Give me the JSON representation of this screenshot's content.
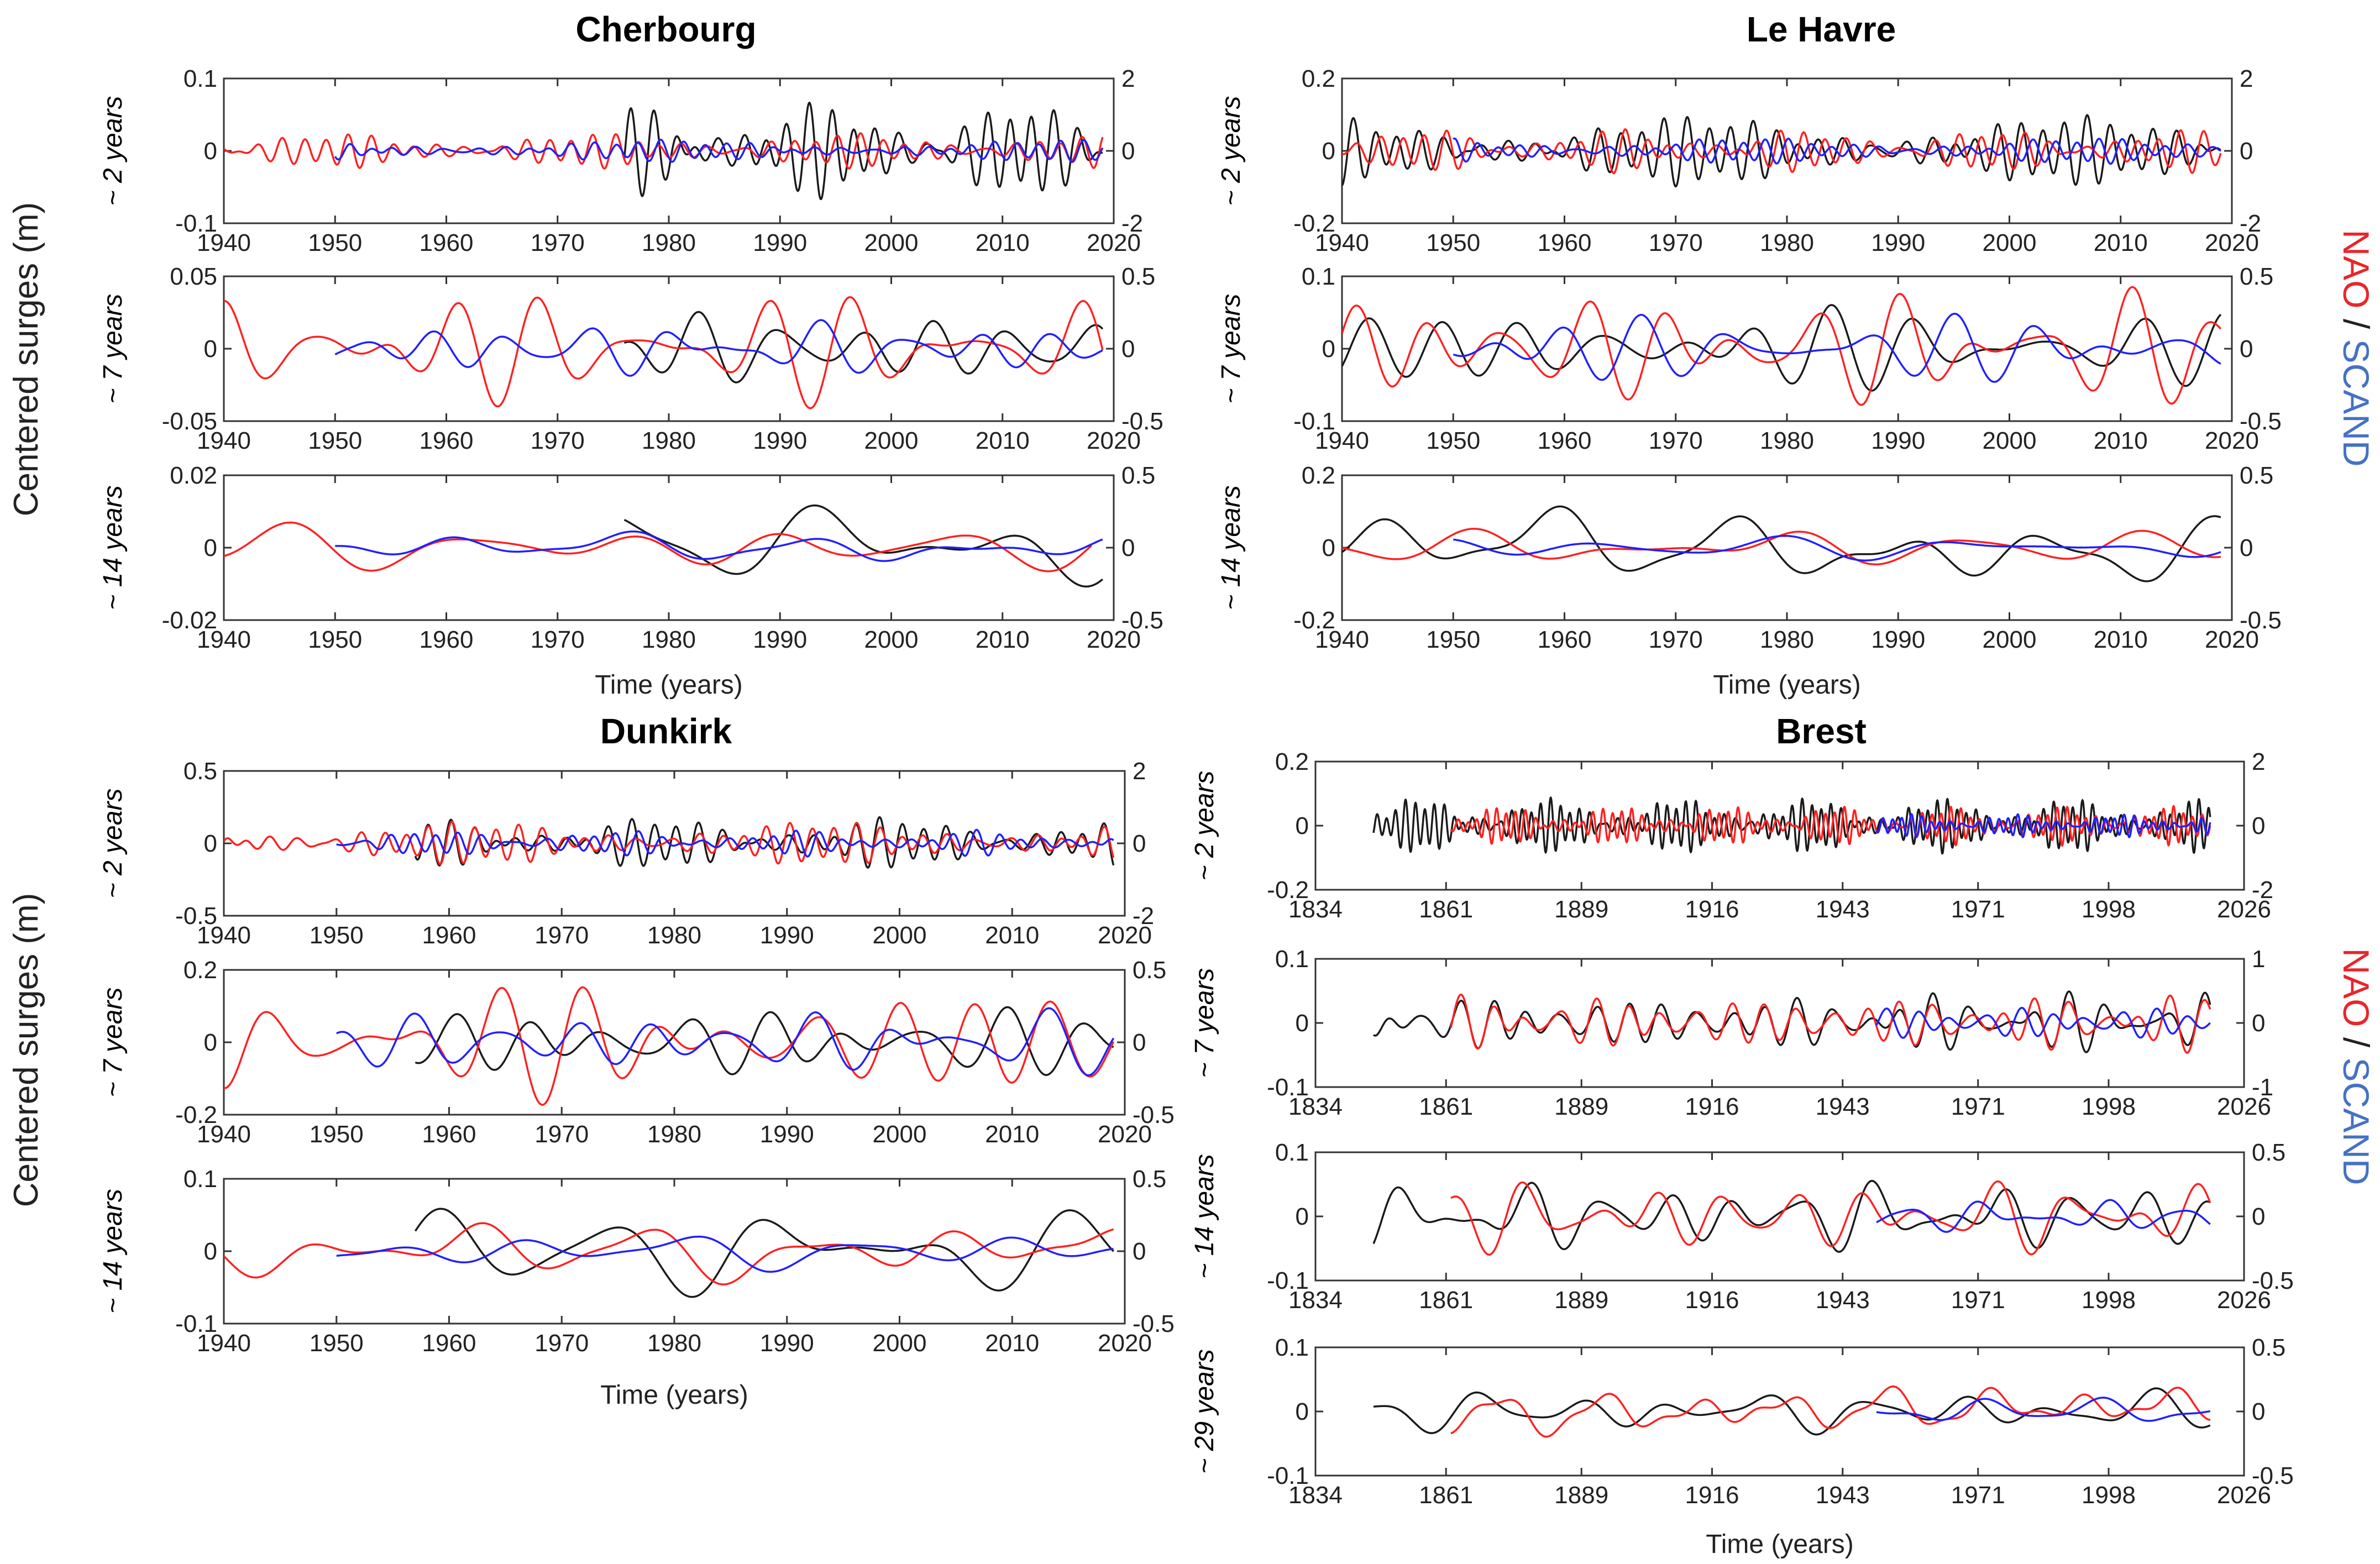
{
  "figure": {
    "shared_ylabel": "Centered surges (m)",
    "shared_xlabel": "Time (years)",
    "legend": {
      "nao": "NAO",
      "separator": "/",
      "scand": "SCAND"
    },
    "colors": {
      "surge": "#1a1a1a",
      "nao": "#ff2020",
      "scand": "#2020ff",
      "legend_nao": "#e8262b",
      "legend_scand": "#4472c4"
    }
  },
  "chart_data": [
    {
      "type": "line",
      "title": "Cherbourg",
      "xlabel": "Time (years)",
      "panels": [
        {
          "ylabel": "~ 2 years",
          "xlim": [
            1940,
            2020
          ],
          "xticks": [
            "1940",
            "1950",
            "1960",
            "1970",
            "1980",
            "1990",
            "2000",
            "2010",
            "2020"
          ],
          "ylim": [
            -0.1,
            0.1
          ],
          "yticks": [
            "-0.1",
            "0",
            "0.1"
          ],
          "y2lim": [
            -2,
            2
          ],
          "y2ticks": [
            "-2",
            "0",
            "2"
          ],
          "series": [
            {
              "name": "Surge",
              "start": 1976,
              "end": 2019,
              "period": 2,
              "amplitude": 0.055
            },
            {
              "name": "NAO",
              "start": 1940,
              "end": 2019,
              "period": 2,
              "amplitude": 0.4
            },
            {
              "name": "SCAND",
              "start": 1950,
              "end": 2019,
              "period": 2,
              "amplitude": 0.25
            }
          ]
        },
        {
          "ylabel": "~ 7 years",
          "xlim": [
            1940,
            2020
          ],
          "xticks": [
            "1940",
            "1950",
            "1960",
            "1970",
            "1980",
            "1990",
            "2000",
            "2010",
            "2020"
          ],
          "ylim": [
            -0.05,
            0.05
          ],
          "yticks": [
            "-0.05",
            "0",
            "0.05"
          ],
          "y2lim": [
            -0.5,
            0.5
          ],
          "y2ticks": [
            "-0.5",
            "0",
            "0.5"
          ],
          "series": [
            {
              "name": "Surge",
              "start": 1976,
              "end": 2019,
              "period": 7,
              "amplitude": 0.025
            },
            {
              "name": "NAO",
              "start": 1940,
              "end": 2019,
              "period": 7,
              "amplitude": 0.33
            },
            {
              "name": "SCAND",
              "start": 1950,
              "end": 2019,
              "period": 7,
              "amplitude": 0.17
            }
          ]
        },
        {
          "ylabel": "~ 14 years",
          "xlim": [
            1940,
            2020
          ],
          "xticks": [
            "1940",
            "1950",
            "1960",
            "1970",
            "1980",
            "1990",
            "2000",
            "2010",
            "2020"
          ],
          "ylim": [
            -0.02,
            0.02
          ],
          "yticks": [
            "-0.02",
            "0",
            "0.02"
          ],
          "y2lim": [
            -0.5,
            0.5
          ],
          "y2ticks": [
            "-0.5",
            "0",
            "0.5"
          ],
          "series": [
            {
              "name": "Surge",
              "start": 1976,
              "end": 2019,
              "period": 17,
              "amplitude": 0.012
            },
            {
              "name": "NAO",
              "start": 1940,
              "end": 2018,
              "period": 15,
              "amplitude": 0.15
            },
            {
              "name": "SCAND",
              "start": 1950,
              "end": 2019,
              "period": 15,
              "amplitude": 0.1
            }
          ]
        }
      ]
    },
    {
      "type": "line",
      "title": "Le Havre",
      "xlabel": "Time (years)",
      "panels": [
        {
          "ylabel": "~ 2 years",
          "xlim": [
            1940,
            2020
          ],
          "xticks": [
            "1940",
            "1950",
            "1960",
            "1970",
            "1980",
            "1990",
            "2000",
            "2010",
            "2020"
          ],
          "ylim": [
            -0.2,
            0.2
          ],
          "yticks": [
            "-0.2",
            "0",
            "0.2"
          ],
          "y2lim": [
            -2,
            2
          ],
          "y2ticks": [
            "-2",
            "0",
            "2"
          ],
          "series": [
            {
              "name": "Surge",
              "start": 1940,
              "end": 2019,
              "period": 2,
              "amplitude": 0.08
            },
            {
              "name": "NAO",
              "start": 1940,
              "end": 2019,
              "period": 2,
              "amplitude": 0.5
            },
            {
              "name": "SCAND",
              "start": 1950,
              "end": 2019,
              "period": 2,
              "amplitude": 0.3
            }
          ]
        },
        {
          "ylabel": "~ 7 years",
          "xlim": [
            1940,
            2020
          ],
          "xticks": [
            "1940",
            "1950",
            "1960",
            "1970",
            "1980",
            "1990",
            "2000",
            "2010",
            "2020"
          ],
          "ylim": [
            -0.1,
            0.1
          ],
          "yticks": [
            "-0.1",
            "0",
            "0.1"
          ],
          "y2lim": [
            -0.5,
            0.5
          ],
          "y2ticks": [
            "-0.5",
            "0",
            "0.5"
          ],
          "series": [
            {
              "name": "Surge",
              "start": 1940,
              "end": 2019,
              "period": 7,
              "amplitude": 0.05
            },
            {
              "name": "NAO",
              "start": 1940,
              "end": 2019,
              "period": 7,
              "amplitude": 0.35
            },
            {
              "name": "SCAND",
              "start": 1950,
              "end": 2019,
              "period": 7,
              "amplitude": 0.2
            }
          ]
        },
        {
          "ylabel": "~ 14 years",
          "xlim": [
            1940,
            2020
          ],
          "xticks": [
            "1940",
            "1950",
            "1960",
            "1970",
            "1980",
            "1990",
            "2000",
            "2010",
            "2020"
          ],
          "ylim": [
            -0.2,
            0.2
          ],
          "yticks": [
            "-0.2",
            "0",
            "0.2"
          ],
          "y2lim": [
            -0.5,
            0.5
          ],
          "y2ticks": [
            "-0.5",
            "0",
            "0.5"
          ],
          "series": [
            {
              "name": "Surge",
              "start": 1940,
              "end": 2019,
              "period": 15,
              "amplitude": 0.1
            },
            {
              "name": "NAO",
              "start": 1940,
              "end": 2019,
              "period": 15,
              "amplitude": 0.12
            },
            {
              "name": "SCAND",
              "start": 1950,
              "end": 2019,
              "period": 15,
              "amplitude": 0.08
            }
          ]
        }
      ]
    },
    {
      "type": "line",
      "title": "Dunkirk",
      "xlabel": "Time (years)",
      "panels": [
        {
          "ylabel": "~ 2 years",
          "xlim": [
            1940,
            2020
          ],
          "xticks": [
            "1940",
            "1950",
            "1960",
            "1970",
            "1980",
            "1990",
            "2000",
            "2010",
            "2020"
          ],
          "ylim": [
            -0.5,
            0.5
          ],
          "yticks": [
            "-0.5",
            "0",
            "0.5"
          ],
          "y2lim": [
            -2,
            2
          ],
          "y2ticks": [
            "-2",
            "0",
            "2"
          ],
          "series": [
            {
              "name": "Surge",
              "start": 1957,
              "end": 2019,
              "period": 2,
              "amplitude": 0.15
            },
            {
              "name": "NAO",
              "start": 1940,
              "end": 2019,
              "period": 2,
              "amplitude": 0.5
            },
            {
              "name": "SCAND",
              "start": 1950,
              "end": 2019,
              "period": 2,
              "amplitude": 0.3
            }
          ]
        },
        {
          "ylabel": "~ 7 years",
          "xlim": [
            1940,
            2020
          ],
          "xticks": [
            "1940",
            "1950",
            "1960",
            "1970",
            "1980",
            "1990",
            "2000",
            "2010",
            "2020"
          ],
          "ylim": [
            -0.2,
            0.2
          ],
          "yticks": [
            "-0.2",
            "0",
            "0.2"
          ],
          "y2lim": [
            -0.5,
            0.5
          ],
          "y2ticks": [
            "-0.5",
            "0",
            "0.5"
          ],
          "series": [
            {
              "name": "Surge",
              "start": 1957,
              "end": 2019,
              "period": 7,
              "amplitude": 0.09
            },
            {
              "name": "NAO",
              "start": 1940,
              "end": 2019,
              "period": 7,
              "amplitude": 0.35
            },
            {
              "name": "SCAND",
              "start": 1950,
              "end": 2019,
              "period": 7,
              "amplitude": 0.2
            }
          ]
        },
        {
          "ylabel": "~ 14 years",
          "xlim": [
            1940,
            2020
          ],
          "xticks": [
            "1940",
            "1950",
            "1960",
            "1970",
            "1980",
            "1990",
            "2000",
            "2010",
            "2020"
          ],
          "ylim": [
            -0.1,
            0.1
          ],
          "yticks": [
            "-0.1",
            "0",
            "0.1"
          ],
          "y2lim": [
            -0.5,
            0.5
          ],
          "y2ticks": [
            "-0.5",
            "0",
            "0.5"
          ],
          "series": [
            {
              "name": "Surge",
              "start": 1957,
              "end": 2019,
              "period": 14,
              "amplitude": 0.06
            },
            {
              "name": "NAO",
              "start": 1940,
              "end": 2019,
              "period": 14,
              "amplitude": 0.2
            },
            {
              "name": "SCAND",
              "start": 1950,
              "end": 2019,
              "period": 14,
              "amplitude": 0.12
            }
          ]
        }
      ]
    },
    {
      "type": "line",
      "title": "Brest",
      "xlabel": "Time (years)",
      "panels": [
        {
          "ylabel": "~ 2 years",
          "xlim": [
            1834,
            2026
          ],
          "xticks": [
            "1834",
            "1861",
            "1889",
            "1916",
            "1943",
            "1971",
            "1998",
            "2026"
          ],
          "ylim": [
            -0.2,
            0.2
          ],
          "yticks": [
            "-0.2",
            "0",
            "0.2"
          ],
          "y2lim": [
            -2,
            2
          ],
          "y2ticks": [
            "-2",
            "0",
            "2"
          ],
          "series": [
            {
              "name": "Surge",
              "start": 1846,
              "end": 2019,
              "period": 2,
              "amplitude": 0.07
            },
            {
              "name": "NAO",
              "start": 1862,
              "end": 2019,
              "period": 2,
              "amplitude": 0.5
            },
            {
              "name": "SCAND",
              "start": 1950,
              "end": 2019,
              "period": 2,
              "amplitude": 0.3
            }
          ]
        },
        {
          "ylabel": "~ 7 years",
          "xlim": [
            1834,
            2026
          ],
          "xticks": [
            "1834",
            "1861",
            "1889",
            "1916",
            "1943",
            "1971",
            "1998",
            "2026"
          ],
          "ylim": [
            -0.1,
            0.1
          ],
          "yticks": [
            "-0.1",
            "0",
            "0.1"
          ],
          "y2lim": [
            -1,
            1
          ],
          "y2ticks": [
            "-1",
            "0",
            "1"
          ],
          "series": [
            {
              "name": "Surge",
              "start": 1846,
              "end": 2019,
              "period": 7,
              "amplitude": 0.04
            },
            {
              "name": "NAO",
              "start": 1862,
              "end": 2019,
              "period": 7,
              "amplitude": 0.4
            },
            {
              "name": "SCAND",
              "start": 1950,
              "end": 2019,
              "period": 7,
              "amplitude": 0.25
            }
          ]
        },
        {
          "ylabel": "~ 14 years",
          "xlim": [
            1834,
            2026
          ],
          "xticks": [
            "1834",
            "1861",
            "1889",
            "1916",
            "1943",
            "1971",
            "1998",
            "2026"
          ],
          "ylim": [
            -0.1,
            0.1
          ],
          "yticks": [
            "-0.1",
            "0",
            "0.1"
          ],
          "y2lim": [
            -0.5,
            0.5
          ],
          "y2ticks": [
            "-0.5",
            "0",
            "0.5"
          ],
          "series": [
            {
              "name": "Surge",
              "start": 1846,
              "end": 2019,
              "period": 14,
              "amplitude": 0.05
            },
            {
              "name": "NAO",
              "start": 1862,
              "end": 2019,
              "period": 14,
              "amplitude": 0.25
            },
            {
              "name": "SCAND",
              "start": 1950,
              "end": 2019,
              "period": 14,
              "amplitude": 0.12
            }
          ]
        },
        {
          "ylabel": "~ 29 years",
          "xlim": [
            1834,
            2026
          ],
          "xticks": [
            "1834",
            "1861",
            "1889",
            "1916",
            "1943",
            "1971",
            "1998",
            "2026"
          ],
          "ylim": [
            -0.1,
            0.1
          ],
          "yticks": [
            "-0.1",
            "0",
            "0.1"
          ],
          "y2lim": [
            -0.5,
            0.5
          ],
          "y2ticks": [
            "-0.5",
            "0",
            "0.5"
          ],
          "series": [
            {
              "name": "Surge",
              "start": 1846,
              "end": 2019,
              "period": 20,
              "amplitude": 0.03
            },
            {
              "name": "NAO",
              "start": 1862,
              "end": 2019,
              "period": 20,
              "amplitude": 0.18
            },
            {
              "name": "SCAND",
              "start": 1950,
              "end": 2019,
              "period": 22,
              "amplitude": 0.1
            }
          ]
        }
      ]
    }
  ]
}
